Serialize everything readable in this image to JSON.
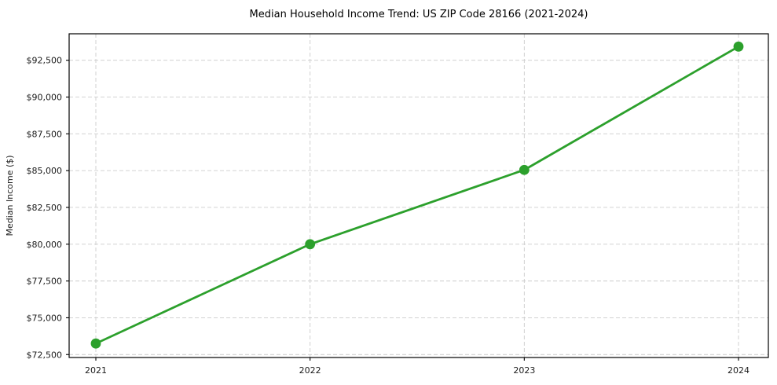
{
  "chart_data": {
    "type": "line",
    "title": "Median Household Income Trend: US ZIP Code 28166 (2021-2024)",
    "xlabel": "",
    "ylabel": "Median Income ($)",
    "categories": [
      "2021",
      "2022",
      "2023",
      "2024"
    ],
    "series": [
      {
        "name": "Median household income",
        "color": "#2ca02c",
        "marker": "circle",
        "values": [
          73250,
          80000,
          85050,
          93430
        ]
      }
    ],
    "ylim": [
      72300,
      94300
    ],
    "y_ticks": [
      {
        "value": 72500,
        "label": "$72,500"
      },
      {
        "value": 75000,
        "label": "$75,000"
      },
      {
        "value": 77500,
        "label": "$77,500"
      },
      {
        "value": 80000,
        "label": "$80,000"
      },
      {
        "value": 82500,
        "label": "$82,500"
      },
      {
        "value": 85000,
        "label": "$85,000"
      },
      {
        "value": 87500,
        "label": "$87,500"
      },
      {
        "value": 90000,
        "label": "$90,000"
      },
      {
        "value": 92500,
        "label": "$92,500"
      }
    ],
    "grid": "both, dashed",
    "legend": "none",
    "colors": {
      "line": "#2ca02c",
      "grid": "#cccccc",
      "axis": "#000000",
      "text": "#000000",
      "background": "#ffffff"
    }
  }
}
